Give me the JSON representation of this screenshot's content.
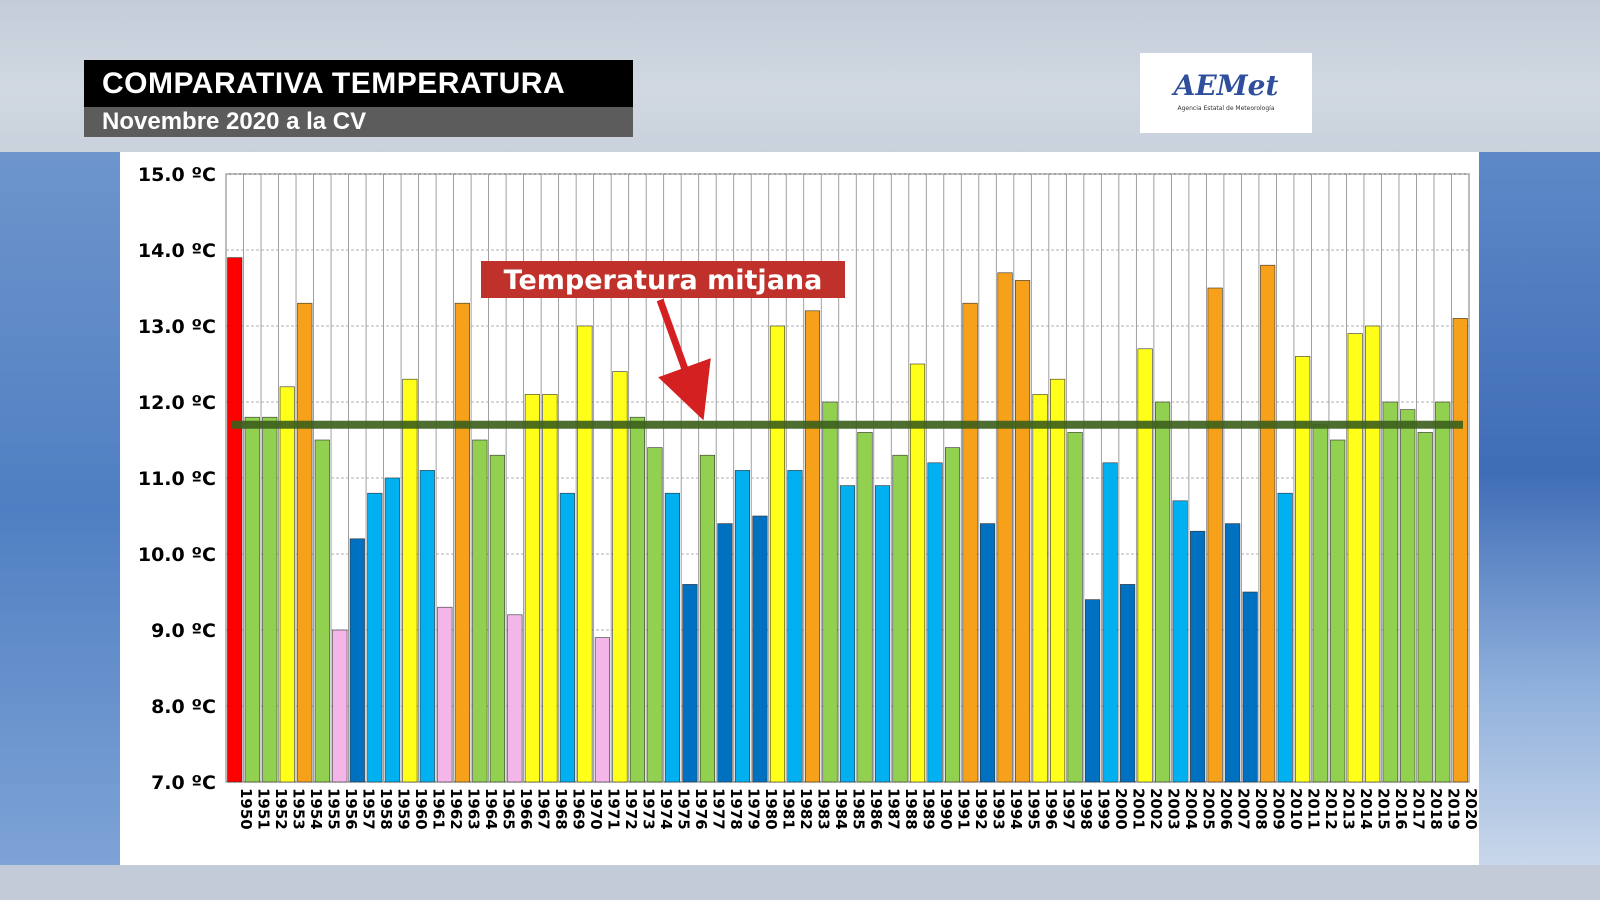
{
  "header": {
    "title": "COMPARATIVA TEMPERATURA",
    "subtitle": "Novembre 2020 a la CV"
  },
  "logo": {
    "text": "AEMet",
    "subtext": "Agencia Estatal de Meteorología"
  },
  "colors": {
    "red": "#ff0000",
    "orange": "#f7a11a",
    "yellow": "#ffff1a",
    "green": "#92d050",
    "light_blue": "#00b0f0",
    "dark_blue": "#0070c0",
    "pink": "#f4b6e8",
    "mean_line": "#3b5e1b",
    "annotation_bg": "#c0312b",
    "arrow": "#d42020"
  },
  "chart_data": {
    "type": "bar",
    "title": "",
    "xlabel": "",
    "ylabel": "",
    "ylim": [
      7.0,
      15.0
    ],
    "yticks": [
      {
        "value": 15.0,
        "label": "15.0 ºC"
      },
      {
        "value": 14.0,
        "label": "14.0 ºC"
      },
      {
        "value": 13.0,
        "label": "13.0 ºC"
      },
      {
        "value": 12.0,
        "label": "12.0 ºC"
      },
      {
        "value": 11.0,
        "label": "11.0 ºC"
      },
      {
        "value": 10.0,
        "label": "10.0 ºC"
      },
      {
        "value": 9.0,
        "label": "9.0 ºC"
      },
      {
        "value": 8.0,
        "label": "8.0 ºC"
      },
      {
        "value": 7.0,
        "label": "7.0 ºC"
      }
    ],
    "grid": true,
    "mean_value": 11.7,
    "annotation": "Temperatura mitjana",
    "categories": [
      "1950",
      "1951",
      "1952",
      "1953",
      "1954",
      "1955",
      "1956",
      "1957",
      "1958",
      "1959",
      "1960",
      "1961",
      "1962",
      "1963",
      "1964",
      "1965",
      "1966",
      "1967",
      "1968",
      "1969",
      "1970",
      "1971",
      "1972",
      "1973",
      "1974",
      "1975",
      "1976",
      "1977",
      "1978",
      "1979",
      "1980",
      "1981",
      "1982",
      "1983",
      "1984",
      "1985",
      "1986",
      "1987",
      "1988",
      "1989",
      "1990",
      "1991",
      "1992",
      "1993",
      "1994",
      "1995",
      "1996",
      "1997",
      "1998",
      "1999",
      "2000",
      "2001",
      "2002",
      "2003",
      "2004",
      "2005",
      "2006",
      "2007",
      "2008",
      "2009",
      "2010",
      "2011",
      "2012",
      "2013",
      "2014",
      "2015",
      "2016",
      "2017",
      "2018",
      "2019",
      "2020"
    ],
    "values": [
      13.9,
      11.8,
      11.8,
      12.2,
      13.3,
      11.5,
      9.0,
      10.2,
      10.8,
      11.0,
      12.3,
      11.1,
      9.3,
      13.3,
      11.5,
      11.3,
      9.2,
      12.1,
      12.1,
      10.8,
      13.0,
      8.9,
      12.4,
      11.8,
      11.4,
      10.8,
      9.6,
      11.3,
      10.4,
      11.1,
      10.5,
      13.0,
      11.1,
      13.2,
      12.0,
      10.9,
      11.6,
      10.9,
      11.3,
      12.5,
      11.2,
      11.4,
      13.3,
      10.4,
      13.7,
      13.6,
      12.1,
      12.3,
      11.6,
      9.4,
      11.2,
      9.6,
      12.7,
      12.0,
      10.7,
      10.3,
      13.5,
      10.4,
      9.5,
      13.8,
      10.8,
      12.6,
      11.7,
      11.5,
      12.9,
      13.0,
      12.0,
      11.9,
      11.6,
      12.0,
      13.1
    ],
    "color_classes": [
      "red",
      "green",
      "green",
      "yellow",
      "orange",
      "green",
      "pink",
      "dark_blue",
      "light_blue",
      "light_blue",
      "yellow",
      "light_blue",
      "pink",
      "orange",
      "green",
      "green",
      "pink",
      "yellow",
      "yellow",
      "light_blue",
      "yellow",
      "pink",
      "yellow",
      "green",
      "green",
      "light_blue",
      "dark_blue",
      "green",
      "dark_blue",
      "light_blue",
      "dark_blue",
      "yellow",
      "light_blue",
      "orange",
      "green",
      "light_blue",
      "green",
      "light_blue",
      "green",
      "yellow",
      "light_blue",
      "green",
      "orange",
      "dark_blue",
      "orange",
      "orange",
      "yellow",
      "yellow",
      "green",
      "dark_blue",
      "light_blue",
      "dark_blue",
      "yellow",
      "green",
      "light_blue",
      "dark_blue",
      "orange",
      "dark_blue",
      "dark_blue",
      "orange",
      "light_blue",
      "yellow",
      "green",
      "green",
      "yellow",
      "yellow",
      "green",
      "green",
      "green",
      "green",
      "orange"
    ]
  }
}
